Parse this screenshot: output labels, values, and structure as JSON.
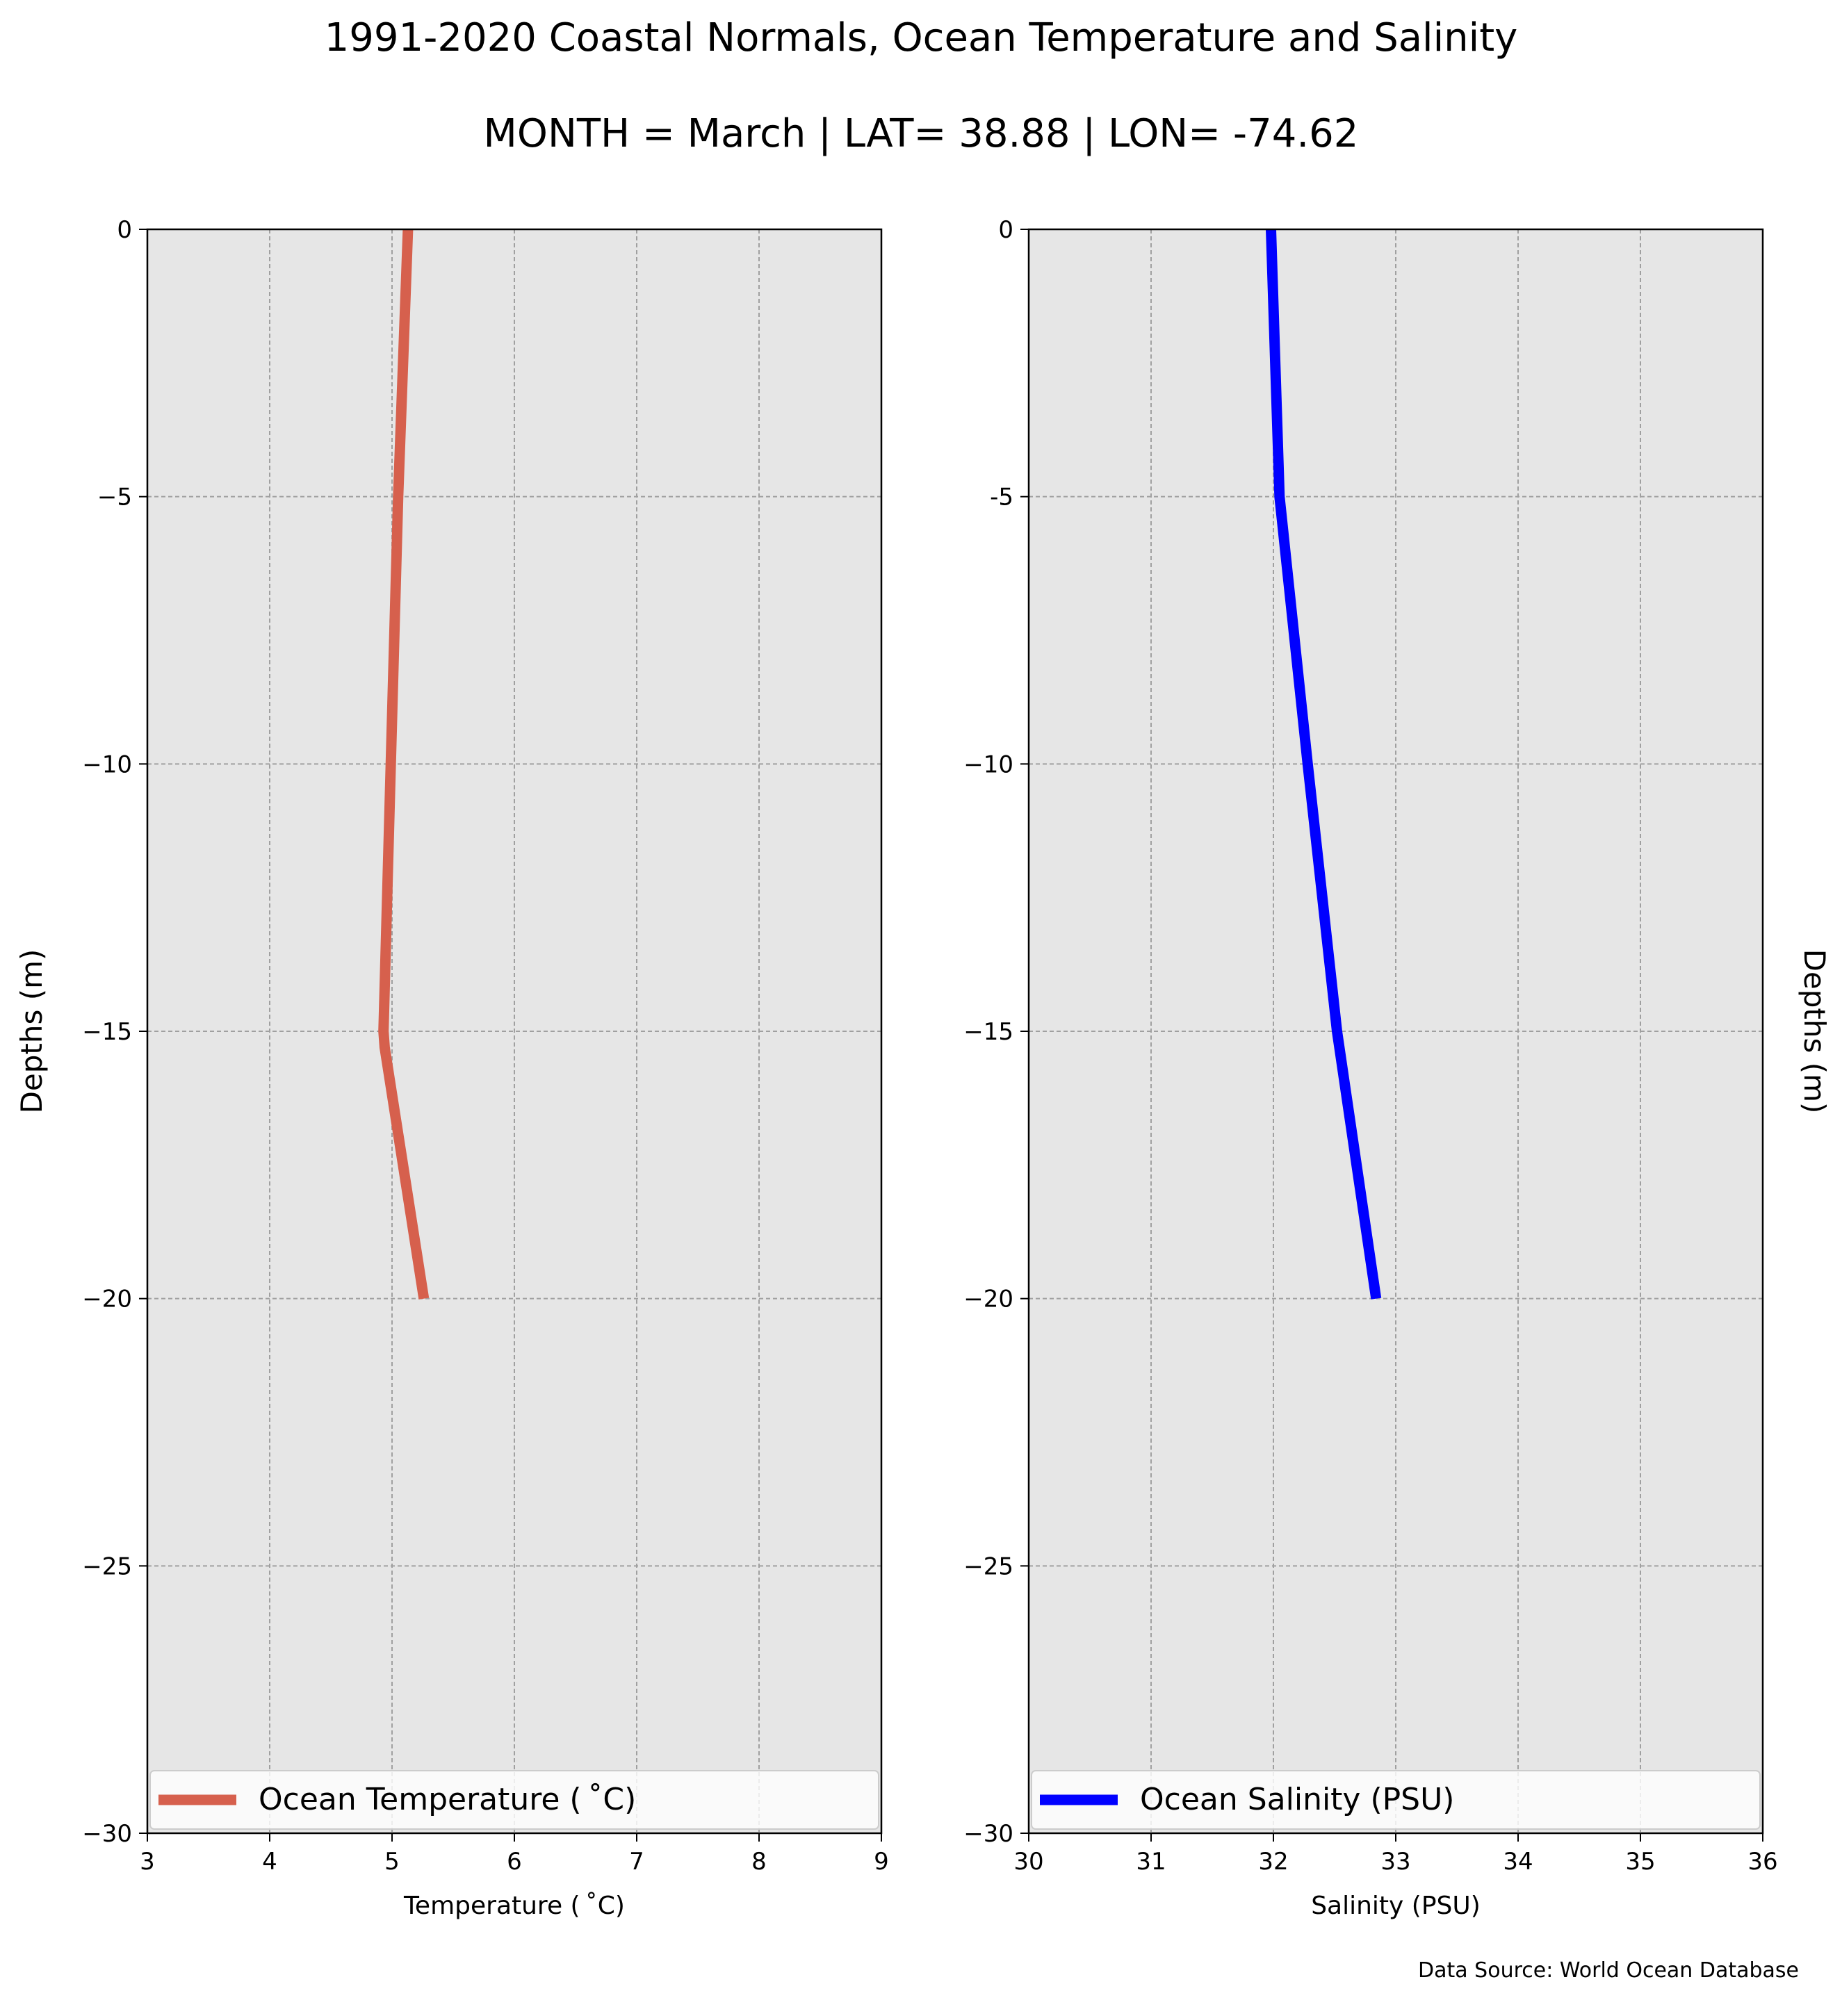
{
  "title": "1991-2020 Coastal Normals, Ocean Temperature and Salinity",
  "subtitle": "MONTH = March | LAT= 38.88 | LON= -74.62",
  "source_note": "Data Source: World Ocean Database",
  "colors": {
    "temperature_line": "#d6604d",
    "salinity_line": "#0000ff",
    "plot_background": "#e6e6e6",
    "grid": "#a0a0a0"
  },
  "chart_data": [
    {
      "type": "line",
      "xlabel": "Temperature ($^\\circ$C)",
      "xlabel_display": "Temperature ( ˚C)",
      "ylabel": "Depths (m)",
      "xlim": [
        3,
        9
      ],
      "ylim": [
        -30,
        0
      ],
      "xticks": [
        "3",
        "4",
        "5",
        "6",
        "7",
        "8",
        "9"
      ],
      "yticks": [
        "0",
        "−5",
        "−10",
        "−15",
        "−20",
        "−25",
        "−30"
      ],
      "grid": true,
      "legend_position": "bottom",
      "series": [
        {
          "name": "Ocean Temperature ( ˚C)",
          "x": [
            5.13,
            5.05,
            4.99,
            4.93,
            4.94,
            5.26
          ],
          "y": [
            0,
            -5,
            -10,
            -15,
            -15.3,
            -20
          ]
        }
      ]
    },
    {
      "type": "line",
      "xlabel": "Salinity (PSU)",
      "ylabel": "Depths (m)",
      "ylabel_position": "right",
      "xlim": [
        30,
        36
      ],
      "ylim": [
        -30,
        0
      ],
      "xticks": [
        "30",
        "31",
        "32",
        "33",
        "34",
        "35",
        "36"
      ],
      "yticks": [
        "0",
        "-5",
        "−10",
        "−15",
        "−20",
        "−25",
        "−30"
      ],
      "grid": true,
      "legend_position": "bottom",
      "series": [
        {
          "name": "Ocean Salinity (PSU)",
          "x": [
            31.98,
            32.05,
            32.28,
            32.52,
            32.84
          ],
          "y": [
            0,
            -5,
            -10,
            -15,
            -20
          ]
        }
      ]
    }
  ]
}
